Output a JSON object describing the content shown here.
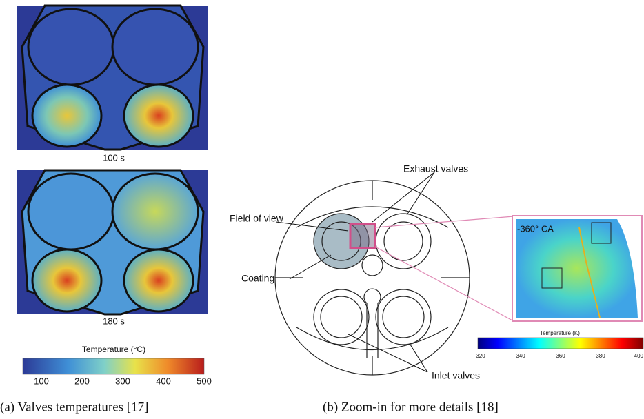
{
  "panel_a": {
    "snapshots": [
      {
        "label": "100 s"
      },
      {
        "label": "180 s"
      }
    ],
    "colorbar": {
      "title": "Temperature (°C)",
      "ticks": [
        100,
        200,
        300,
        400,
        500
      ]
    },
    "caption": "(a) Valves temperatures [17]"
  },
  "panel_b": {
    "labels": {
      "exhaust": "Exhaust valves",
      "field_of_view": "Field of view",
      "coating": "Coating",
      "inlet": "Inlet valves"
    },
    "inset_label": "-360° CA",
    "colorbar": {
      "title": "Temperature (K)",
      "ticks": [
        320,
        340,
        360,
        380,
        400
      ]
    },
    "caption": "(b) Zoom-in for more details [18]"
  }
}
